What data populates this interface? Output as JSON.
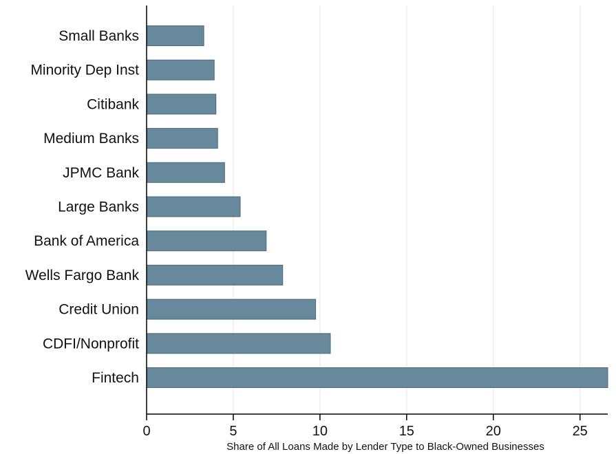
{
  "chart_data": {
    "type": "bar",
    "orientation": "horizontal",
    "categories": [
      "Small Banks",
      "Minority Dep Inst",
      "Citibank",
      "Medium Banks",
      "JPMC Bank",
      "Large Banks",
      "Bank of America",
      "Wells Fargo Bank",
      "Credit Union",
      "CDFI/Nonprofit",
      "Fintech"
    ],
    "values": [
      3.3,
      3.9,
      4.0,
      4.1,
      4.5,
      5.4,
      6.9,
      7.85,
      9.75,
      10.6,
      26.6
    ],
    "xlabel": "Share of All Loans Made by Lender Type to Black-Owned Businesses",
    "ylabel": "",
    "xlim": [
      0,
      26.6
    ],
    "xticks": [
      0,
      5,
      10,
      15,
      20,
      25
    ],
    "grid": true,
    "bar_color": "#68889b",
    "bar_edge_color": "#4c6b7e",
    "grid_color": "#e3ecec"
  }
}
